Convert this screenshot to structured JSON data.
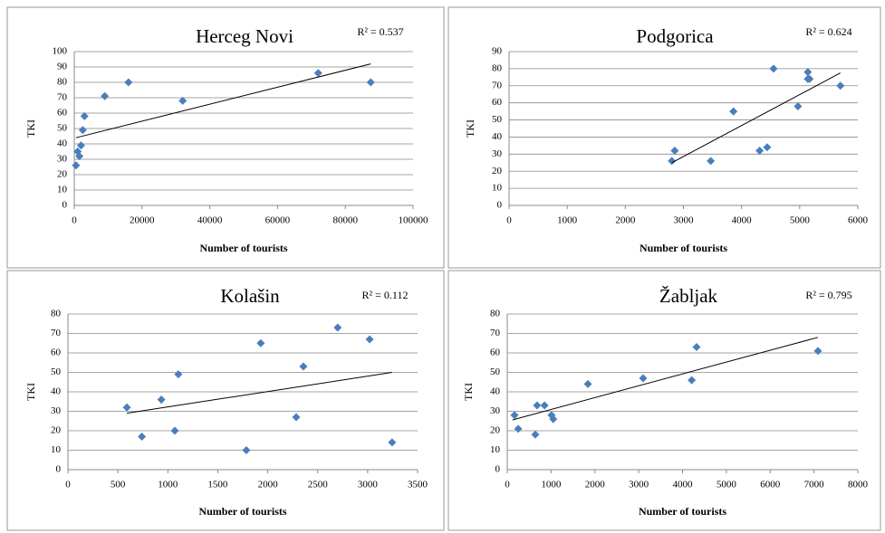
{
  "chart_data": [
    {
      "type": "scatter",
      "title": "Herceg Novi",
      "annotation": "R² = 0.537",
      "xlabel": "Number of tourists",
      "ylabel": "TKI",
      "x": [
        500,
        1000,
        1500,
        2000,
        2500,
        3000,
        9000,
        16000,
        32000,
        72000,
        87500
      ],
      "values": [
        26,
        35,
        32,
        39,
        49,
        58,
        71,
        80,
        68,
        86,
        80
      ],
      "color": "#4a7ebb",
      "trendline": {
        "x": [
          500,
          87500
        ],
        "y": [
          44,
          92
        ]
      },
      "xlim": [
        0,
        100000
      ],
      "xticks": [
        0,
        20000,
        40000,
        60000,
        80000,
        100000
      ],
      "ylim": [
        0,
        100
      ],
      "yticks": [
        0,
        10,
        20,
        30,
        40,
        50,
        60,
        70,
        80,
        90,
        100
      ],
      "grid": true
    },
    {
      "type": "scatter",
      "title": "Podgorica",
      "annotation": "R² = 0.624",
      "xlabel": "Number of tourists",
      "ylabel": "TKI",
      "x": [
        2800,
        2850,
        3470,
        3860,
        4310,
        4440,
        4550,
        4970,
        5140,
        5140,
        5170,
        5700
      ],
      "values": [
        26,
        32,
        26,
        55,
        32,
        34,
        80,
        58,
        78,
        74,
        74,
        70
      ],
      "color": "#4a7ebb",
      "trendline": {
        "x": [
          2800,
          5700
        ],
        "y": [
          25,
          77.5
        ]
      },
      "xlim": [
        0,
        6000
      ],
      "xticks": [
        0,
        1000,
        2000,
        3000,
        4000,
        5000,
        6000
      ],
      "ylim": [
        0,
        90
      ],
      "yticks": [
        0,
        10,
        20,
        30,
        40,
        50,
        60,
        70,
        80,
        90
      ],
      "grid": true
    },
    {
      "type": "scatter",
      "title": "Kolašin",
      "annotation": "R² = 0.112",
      "xlabel": "Number of tourists",
      "ylabel": "TKI",
      "x": [
        590,
        740,
        935,
        1070,
        1105,
        1786,
        1930,
        2285,
        2357,
        2700,
        3020,
        3245
      ],
      "values": [
        32,
        17,
        36,
        20,
        49,
        10,
        65,
        27,
        53,
        73,
        67,
        14
      ],
      "color": "#4a7ebb",
      "trendline": {
        "x": [
          590,
          3245
        ],
        "y": [
          29,
          50
        ]
      },
      "xlim": [
        0,
        3500
      ],
      "xticks": [
        0,
        500,
        1000,
        1500,
        2000,
        2500,
        3000,
        3500
      ],
      "ylim": [
        0,
        80
      ],
      "yticks": [
        0,
        10,
        20,
        30,
        40,
        50,
        60,
        70,
        80
      ],
      "grid": true
    },
    {
      "type": "scatter",
      "title": "Žabljak",
      "annotation": "R² = 0.795",
      "xlabel": "Number of tourists",
      "ylabel": "TKI",
      "x": [
        165,
        250,
        640,
        680,
        850,
        1010,
        1050,
        1840,
        3100,
        4210,
        4320,
        7090
      ],
      "values": [
        28,
        21,
        18,
        33,
        33,
        28,
        26,
        44,
        47,
        46,
        63,
        61
      ],
      "color": "#4a7ebb",
      "trendline": {
        "x": [
          120,
          7090
        ],
        "y": [
          25.6,
          68
        ]
      },
      "xlim": [
        0,
        8000
      ],
      "xticks": [
        0,
        1000,
        2000,
        3000,
        4000,
        5000,
        6000,
        7000,
        8000
      ],
      "ylim": [
        0,
        80
      ],
      "yticks": [
        0,
        10,
        20,
        30,
        40,
        50,
        60,
        70,
        80
      ],
      "grid": true
    }
  ]
}
